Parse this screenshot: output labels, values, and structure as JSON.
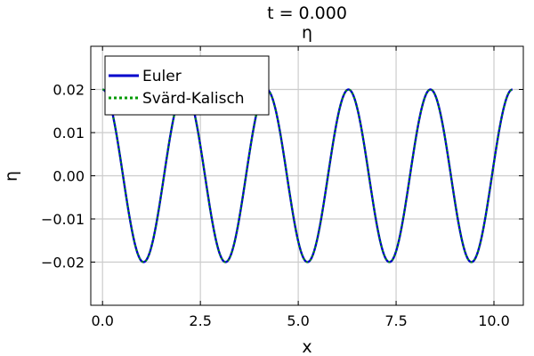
{
  "chart_data": {
    "type": "line",
    "suptitle": "t = 0.000",
    "title": "η",
    "xlabel": "x",
    "ylabel": "η",
    "xlim": [
      -0.3,
      10.75
    ],
    "ylim": [
      -0.03,
      0.03
    ],
    "xticks": [
      0.0,
      2.5,
      5.0,
      7.5,
      10.0
    ],
    "xtick_labels": [
      "0.0",
      "2.5",
      "5.0",
      "7.5",
      "10.0"
    ],
    "yticks": [
      -0.02,
      -0.01,
      0.0,
      0.01,
      0.02
    ],
    "ytick_labels": [
      "−0.02",
      "−0.01",
      "0.00",
      "0.01",
      "0.02"
    ],
    "grid": true,
    "legend_position": "top-left",
    "function": {
      "form": "amplitude * cos(2*pi*x/wavelength)",
      "amplitude": 0.02,
      "wavelength": 2.0944,
      "x_start": 0.0,
      "x_end": 10.472
    },
    "series": [
      {
        "name": "Euler",
        "color": "#0000cc",
        "style": "solid"
      },
      {
        "name": "Svärd-Kalisch",
        "color": "#009900",
        "style": "dotted"
      }
    ]
  }
}
